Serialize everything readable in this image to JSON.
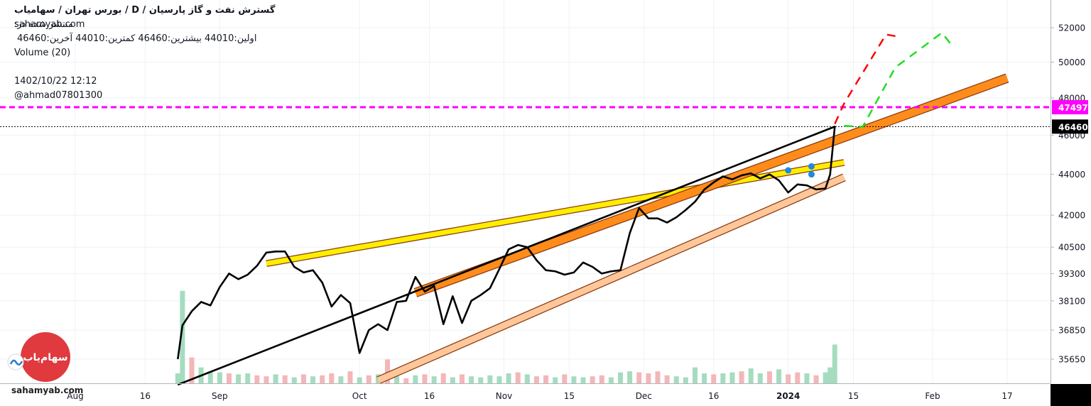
{
  "header": {
    "title": "گسترش نفت و گاز پارسیان /  D  /  بورس تهران / سهامیاب",
    "published": "منتشر شده در:",
    "site": "sahamyab.com",
    "ohlc": "اولین:44010  بیشترین:46460  کمترین:44010  آخرین:46460",
    "volume_label": "Volume (20)",
    "datetime": "1402/10/22 12:12",
    "author": "@ahmad07801300"
  },
  "logo": {
    "text": "سهام‌یاب",
    "site": "sahamyab.com"
  },
  "colors": {
    "price_line": "#000000",
    "vol_up": "#a5dcc0",
    "vol_down": "#f4b6b8",
    "level_line": "#ff00ff",
    "last_badge": "#000000",
    "channel_yellow": "#ffee00",
    "channel_orange": "#ff8c1a",
    "channel_peach": "#ffc79a",
    "arrow_red": "#ff0000",
    "arrow_green": "#22dd22"
  },
  "chart_data": {
    "type": "line",
    "y_scale": "log",
    "y_ticks": [
      "52000",
      "50000",
      "48000",
      "46000",
      "44000",
      "42000",
      "40500",
      "39300",
      "38100",
      "36850",
      "35650"
    ],
    "x_ticks": [
      "Aug",
      "16",
      "Sep",
      "Oct",
      "16",
      "Nov",
      "15",
      "Dec",
      "16",
      "2024",
      "15",
      "Feb",
      "17"
    ],
    "levels": [
      {
        "value": 47497,
        "label": "47497",
        "style": "dashed",
        "color": "#ff00ff"
      },
      {
        "value": 46460,
        "label": "46460",
        "style": "dotted",
        "color": "#000000"
      }
    ],
    "series": [
      {
        "x": [
          "2023-08-23",
          "2023-08-24",
          "2023-08-26",
          "2023-08-28",
          "2023-08-30",
          "2023-09-01",
          "2023-09-03",
          "2023-09-05",
          "2023-09-07",
          "2023-09-09",
          "2023-09-11",
          "2023-09-13",
          "2023-09-15",
          "2023-09-17",
          "2023-09-19",
          "2023-09-21",
          "2023-09-23",
          "2023-09-25",
          "2023-09-27",
          "2023-09-29",
          "2023-10-01",
          "2023-10-03",
          "2023-10-05",
          "2023-10-07",
          "2023-10-09",
          "2023-10-11",
          "2023-10-13",
          "2023-10-15",
          "2023-10-17",
          "2023-10-19",
          "2023-10-21",
          "2023-10-23",
          "2023-10-25",
          "2023-10-27",
          "2023-10-29",
          "2023-10-31",
          "2023-11-02",
          "2023-11-04",
          "2023-11-06",
          "2023-11-08",
          "2023-11-10",
          "2023-11-12",
          "2023-11-14",
          "2023-11-16",
          "2023-11-18",
          "2023-11-20",
          "2023-11-22",
          "2023-11-24",
          "2023-11-26",
          "2023-11-28",
          "2023-11-30",
          "2023-12-02",
          "2023-12-04",
          "2023-12-06",
          "2023-12-08",
          "2023-12-10",
          "2023-12-12",
          "2023-12-14",
          "2023-12-16",
          "2023-12-18",
          "2023-12-20",
          "2023-12-22",
          "2023-12-24",
          "2023-12-26",
          "2023-12-28",
          "2023-12-30",
          "2024-01-01",
          "2024-01-03",
          "2024-01-05",
          "2024-01-07",
          "2024-01-09",
          "2024-01-10",
          "2024-01-11"
        ],
        "values": [
          35650,
          37050,
          37650,
          38050,
          37900,
          38700,
          39300,
          39050,
          39250,
          39650,
          40250,
          40300,
          40300,
          39600,
          39350,
          39450,
          38900,
          37850,
          38350,
          38000,
          35900,
          36850,
          37100,
          36850,
          38050,
          38100,
          39150,
          38500,
          38750,
          37100,
          38300,
          37150,
          38100,
          38350,
          38650,
          39500,
          40400,
          40600,
          40500,
          39900,
          39450,
          39400,
          39250,
          39350,
          39800,
          39600,
          39300,
          39400,
          39450,
          41150,
          42350,
          41850,
          41850,
          41650,
          41900,
          42250,
          42650,
          43250,
          43600,
          43900,
          43750,
          43950,
          44050,
          43800,
          44000,
          43700,
          43100,
          43500,
          43450,
          43250,
          43300,
          44000,
          46460
        ]
      }
    ],
    "volume": [
      {
        "x": "2023-08-23",
        "v": 1.0,
        "up": true
      },
      {
        "x": "2023-08-24",
        "v": 9.3,
        "up": true
      },
      {
        "x": "2023-08-26",
        "v": 2.6,
        "up": false
      },
      {
        "x": "2023-08-28",
        "v": 1.6,
        "up": true
      },
      {
        "x": "2023-08-30",
        "v": 1.2,
        "up": true
      },
      {
        "x": "2023-09-01",
        "v": 1.1,
        "up": true
      },
      {
        "x": "2023-09-03",
        "v": 1.0,
        "up": false
      },
      {
        "x": "2023-09-05",
        "v": 0.9,
        "up": true
      },
      {
        "x": "2023-09-07",
        "v": 1.0,
        "up": true
      },
      {
        "x": "2023-09-09",
        "v": 0.8,
        "up": false
      },
      {
        "x": "2023-09-11",
        "v": 0.7,
        "up": false
      },
      {
        "x": "2023-09-13",
        "v": 0.9,
        "up": true
      },
      {
        "x": "2023-09-15",
        "v": 0.8,
        "up": false
      },
      {
        "x": "2023-09-17",
        "v": 0.6,
        "up": true
      },
      {
        "x": "2023-09-19",
        "v": 0.9,
        "up": false
      },
      {
        "x": "2023-09-21",
        "v": 0.7,
        "up": true
      },
      {
        "x": "2023-09-23",
        "v": 0.8,
        "up": false
      },
      {
        "x": "2023-09-25",
        "v": 1.0,
        "up": false
      },
      {
        "x": "2023-09-27",
        "v": 0.7,
        "up": true
      },
      {
        "x": "2023-09-29",
        "v": 1.2,
        "up": false
      },
      {
        "x": "2023-10-01",
        "v": 0.6,
        "up": true
      },
      {
        "x": "2023-10-03",
        "v": 0.8,
        "up": false
      },
      {
        "x": "2023-10-05",
        "v": 0.9,
        "up": true
      },
      {
        "x": "2023-10-07",
        "v": 2.4,
        "up": false
      },
      {
        "x": "2023-10-09",
        "v": 0.7,
        "up": true
      },
      {
        "x": "2023-10-11",
        "v": 0.5,
        "up": false
      },
      {
        "x": "2023-10-13",
        "v": 0.8,
        "up": true
      },
      {
        "x": "2023-10-15",
        "v": 0.9,
        "up": false
      },
      {
        "x": "2023-10-17",
        "v": 0.7,
        "up": true
      },
      {
        "x": "2023-10-19",
        "v": 1.0,
        "up": false
      },
      {
        "x": "2023-10-21",
        "v": 0.6,
        "up": true
      },
      {
        "x": "2023-10-23",
        "v": 0.9,
        "up": false
      },
      {
        "x": "2023-10-25",
        "v": 0.7,
        "up": true
      },
      {
        "x": "2023-10-27",
        "v": 0.6,
        "up": true
      },
      {
        "x": "2023-10-29",
        "v": 0.8,
        "up": true
      },
      {
        "x": "2023-10-31",
        "v": 0.7,
        "up": true
      },
      {
        "x": "2023-11-02",
        "v": 1.0,
        "up": true
      },
      {
        "x": "2023-11-04",
        "v": 1.1,
        "up": false
      },
      {
        "x": "2023-11-06",
        "v": 0.9,
        "up": true
      },
      {
        "x": "2023-11-08",
        "v": 0.7,
        "up": false
      },
      {
        "x": "2023-11-10",
        "v": 0.8,
        "up": false
      },
      {
        "x": "2023-11-12",
        "v": 0.6,
        "up": true
      },
      {
        "x": "2023-11-14",
        "v": 0.9,
        "up": false
      },
      {
        "x": "2023-11-16",
        "v": 0.7,
        "up": true
      },
      {
        "x": "2023-11-18",
        "v": 0.6,
        "up": true
      },
      {
        "x": "2023-11-20",
        "v": 0.7,
        "up": false
      },
      {
        "x": "2023-11-22",
        "v": 0.8,
        "up": false
      },
      {
        "x": "2023-11-24",
        "v": 0.6,
        "up": true
      },
      {
        "x": "2023-11-26",
        "v": 1.1,
        "up": true
      },
      {
        "x": "2023-11-28",
        "v": 1.2,
        "up": true
      },
      {
        "x": "2023-11-30",
        "v": 1.1,
        "up": false
      },
      {
        "x": "2023-12-02",
        "v": 1.0,
        "up": false
      },
      {
        "x": "2023-12-04",
        "v": 1.2,
        "up": false
      },
      {
        "x": "2023-12-06",
        "v": 0.8,
        "up": false
      },
      {
        "x": "2023-12-08",
        "v": 0.7,
        "up": true
      },
      {
        "x": "2023-12-10",
        "v": 0.6,
        "up": true
      },
      {
        "x": "2023-12-12",
        "v": 1.6,
        "up": true
      },
      {
        "x": "2023-12-14",
        "v": 1.0,
        "up": true
      },
      {
        "x": "2023-12-16",
        "v": 0.9,
        "up": false
      },
      {
        "x": "2023-12-18",
        "v": 1.0,
        "up": true
      },
      {
        "x": "2023-12-20",
        "v": 1.1,
        "up": true
      },
      {
        "x": "2023-12-22",
        "v": 1.2,
        "up": false
      },
      {
        "x": "2023-12-24",
        "v": 1.5,
        "up": true
      },
      {
        "x": "2023-12-26",
        "v": 1.0,
        "up": true
      },
      {
        "x": "2023-12-28",
        "v": 1.2,
        "up": false
      },
      {
        "x": "2023-12-30",
        "v": 1.4,
        "up": true
      },
      {
        "x": "2024-01-01",
        "v": 0.9,
        "up": false
      },
      {
        "x": "2024-01-03",
        "v": 1.1,
        "up": false
      },
      {
        "x": "2024-01-05",
        "v": 1.0,
        "up": true
      },
      {
        "x": "2024-01-07",
        "v": 0.8,
        "up": false
      },
      {
        "x": "2024-01-09",
        "v": 1.1,
        "up": true
      },
      {
        "x": "2024-01-10",
        "v": 1.6,
        "up": true
      },
      {
        "x": "2024-01-11",
        "v": 3.9,
        "up": true
      }
    ],
    "trend_bands": [
      {
        "name": "upper-yellow",
        "color": "#ffee00",
        "from": [
          "2023-09-11",
          39750
        ],
        "to": [
          "2024-01-13",
          44600
        ]
      },
      {
        "name": "middle-orange",
        "color": "#ff8c1a",
        "from": [
          "2023-10-13",
          38450
        ],
        "to": [
          "2024-02-17",
          49100
        ]
      },
      {
        "name": "lower-peach",
        "color": "#ffc79a",
        "from": [
          "2023-10-05",
          34800
        ],
        "to": [
          "2024-01-13",
          43850
        ]
      }
    ],
    "markers": [
      {
        "x": "2024-01-01",
        "y": 44200
      },
      {
        "x": "2024-01-06",
        "y": 44400
      },
      {
        "x": "2024-01-06",
        "y": 44000
      }
    ],
    "projections": [
      {
        "name": "red-path",
        "color": "#ff0000",
        "points": [
          [
            "2024-01-11",
            46600
          ],
          [
            "2024-01-13",
            47700
          ],
          [
            "2024-01-22",
            51600
          ],
          [
            "2024-01-24",
            51500
          ]
        ]
      },
      {
        "name": "green-path",
        "color": "#22dd22",
        "points": [
          [
            "2024-01-13",
            46500
          ],
          [
            "2024-01-17",
            46450
          ],
          [
            "2024-01-24",
            49700
          ],
          [
            "2024-02-03",
            51700
          ],
          [
            "2024-02-05",
            51000
          ]
        ]
      }
    ]
  }
}
